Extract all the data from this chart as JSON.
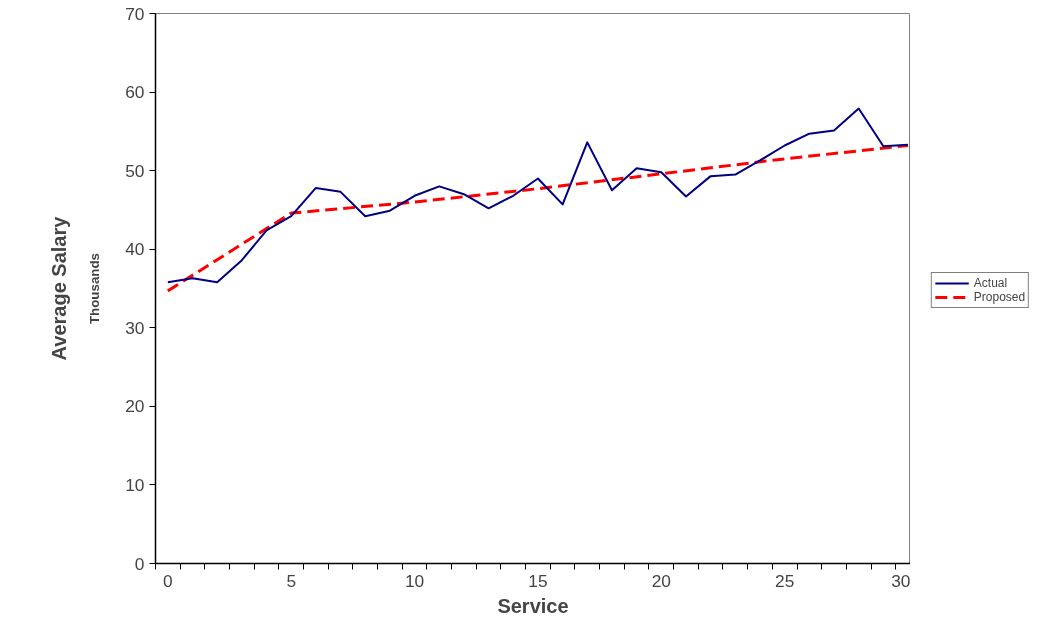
{
  "chart_data": {
    "type": "line",
    "xlabel": "Service",
    "ylabel": "Average Salary",
    "annotations": [
      "Thousands"
    ],
    "xlim": [
      -0.5,
      30.1
    ],
    "ylim": [
      0,
      70
    ],
    "xticks": [
      0,
      5,
      10,
      15,
      20,
      25,
      30
    ],
    "yticks": [
      0,
      10,
      20,
      30,
      40,
      50,
      60,
      70
    ],
    "grid": false,
    "legend": "right",
    "marker": "none",
    "series": [
      {
        "name": "Actual",
        "color": "#000080",
        "line_style": "solid",
        "x": [
          0,
          1,
          2,
          3,
          4,
          5,
          6,
          7,
          8,
          9,
          10,
          11,
          12,
          13,
          14,
          15,
          16,
          17,
          18,
          19,
          20,
          21,
          22,
          23,
          24,
          25,
          26,
          27,
          28,
          29,
          30
        ],
        "values": [
          35.8,
          36.3,
          35.8,
          38.6,
          42.4,
          44.2,
          47.8,
          47.3,
          44.2,
          44.9,
          46.8,
          48.0,
          47.0,
          45.2,
          46.8,
          49.0,
          45.7,
          53.6,
          47.5,
          50.3,
          49.8,
          46.7,
          49.3,
          49.5,
          51.3,
          53.2,
          54.7,
          55.1,
          57.9,
          53.1,
          53.3
        ]
      },
      {
        "name": "Proposed",
        "color": "#ff0000",
        "line_style": "dashed",
        "x": [
          0,
          5,
          10,
          15,
          20,
          25,
          30
        ],
        "values": [
          34.7,
          44.6,
          46.0,
          47.7,
          49.6,
          51.5,
          53.2
        ]
      }
    ]
  }
}
